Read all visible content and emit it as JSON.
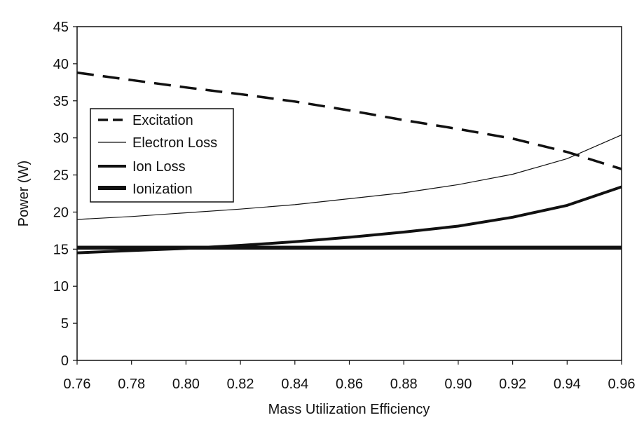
{
  "chart_data": {
    "type": "line",
    "xlabel": "Mass Utilization Efficiency",
    "ylabel": "Power (W)",
    "xlim": [
      0.76,
      0.96
    ],
    "ylim": [
      0,
      45
    ],
    "x_ticks": [
      "0.76",
      "0.78",
      "0.80",
      "0.82",
      "0.84",
      "0.86",
      "0.88",
      "0.90",
      "0.92",
      "0.94",
      "0.96"
    ],
    "y_ticks": [
      "0",
      "5",
      "10",
      "15",
      "20",
      "25",
      "30",
      "35",
      "40",
      "45"
    ],
    "grid": false,
    "legend_position": "upper-left",
    "x": [
      0.76,
      0.78,
      0.8,
      0.82,
      0.84,
      0.86,
      0.88,
      0.9,
      0.92,
      0.94,
      0.96
    ],
    "series": [
      {
        "name": "Excitation",
        "style": "dashed",
        "color": "#111111",
        "values": [
          38.8,
          37.8,
          36.8,
          35.9,
          34.9,
          33.7,
          32.4,
          31.2,
          29.9,
          28.1,
          25.8
        ]
      },
      {
        "name": "Electron Loss",
        "style": "thin",
        "color": "#111111",
        "values": [
          19.0,
          19.4,
          19.9,
          20.4,
          21.0,
          21.8,
          22.6,
          23.7,
          25.1,
          27.2,
          30.4
        ]
      },
      {
        "name": "Ion Loss",
        "style": "thick",
        "color": "#111111",
        "values": [
          14.5,
          14.8,
          15.1,
          15.5,
          16.0,
          16.6,
          17.3,
          18.1,
          19.3,
          20.9,
          23.4
        ]
      },
      {
        "name": "Ionization",
        "style": "thickest",
        "color": "#111111",
        "values": [
          15.2,
          15.2,
          15.2,
          15.2,
          15.2,
          15.2,
          15.2,
          15.2,
          15.2,
          15.2,
          15.2
        ]
      }
    ]
  }
}
